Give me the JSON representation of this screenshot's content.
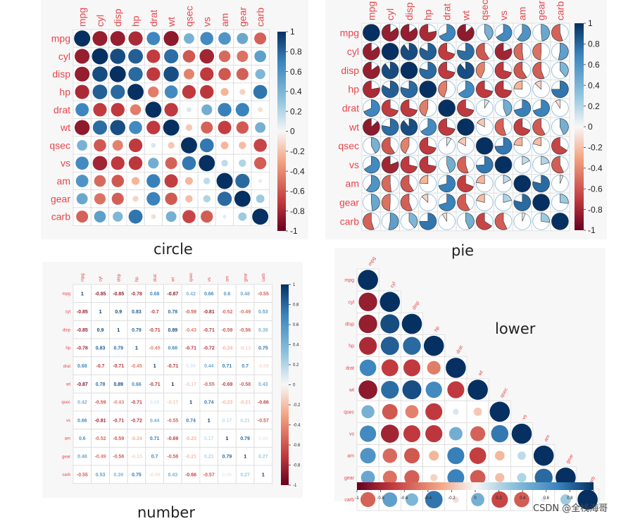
{
  "captions": {
    "circle": "circle",
    "pie": "pie",
    "number": "number",
    "lower": "lower"
  },
  "watermark": "CSDN @全栈海哥",
  "colors": {
    "negative": "#67001f",
    "positive": "#053061",
    "label": "#e8464b"
  },
  "chart_data": [
    {
      "type": "heatmap",
      "method": "circle",
      "variables": [
        "mpg",
        "cyl",
        "disp",
        "hp",
        "drat",
        "wt",
        "qsec",
        "vs",
        "am",
        "gear",
        "carb"
      ],
      "matrix": [
        [
          1,
          -0.85,
          -0.85,
          -0.78,
          0.68,
          -0.87,
          0.42,
          0.66,
          0.6,
          0.48,
          -0.55
        ],
        [
          -0.85,
          1,
          0.9,
          0.83,
          -0.7,
          0.78,
          -0.59,
          -0.81,
          -0.52,
          -0.49,
          0.53
        ],
        [
          -0.85,
          0.9,
          1,
          0.79,
          -0.71,
          0.89,
          -0.43,
          -0.71,
          -0.59,
          -0.56,
          0.39
        ],
        [
          -0.78,
          0.83,
          0.79,
          1,
          -0.45,
          0.66,
          -0.71,
          -0.72,
          -0.24,
          -0.13,
          0.75
        ],
        [
          0.68,
          -0.7,
          -0.71,
          -0.45,
          1,
          -0.71,
          0.09,
          0.44,
          0.71,
          0.7,
          -0.09
        ],
        [
          -0.87,
          0.78,
          0.89,
          0.66,
          -0.71,
          1,
          -0.17,
          -0.55,
          -0.69,
          -0.58,
          0.43
        ],
        [
          0.42,
          -0.59,
          -0.43,
          -0.71,
          0.09,
          -0.17,
          1,
          0.74,
          -0.23,
          -0.21,
          -0.66
        ],
        [
          0.66,
          -0.81,
          -0.71,
          -0.72,
          0.44,
          -0.55,
          0.74,
          1,
          0.17,
          0.21,
          -0.57
        ],
        [
          0.6,
          -0.52,
          -0.59,
          -0.24,
          0.71,
          -0.69,
          -0.23,
          0.17,
          1,
          0.79,
          0.06
        ],
        [
          0.48,
          -0.49,
          -0.56,
          -0.13,
          0.7,
          -0.58,
          -0.21,
          0.21,
          0.79,
          1,
          0.27
        ],
        [
          -0.55,
          0.53,
          0.39,
          0.75,
          -0.09,
          0.43,
          -0.66,
          -0.57,
          0.06,
          0.27,
          1
        ]
      ],
      "colorbar": {
        "ticks": [
          "1",
          "0.8",
          "0.6",
          "0.4",
          "0.2",
          "0",
          "-0.2",
          "-0.4",
          "-0.6",
          "-0.8",
          "-1"
        ],
        "range": [
          -1,
          1
        ],
        "orientation": "vertical"
      }
    },
    {
      "type": "heatmap",
      "method": "pie",
      "variables": [
        "mpg",
        "cyl",
        "disp",
        "hp",
        "drat",
        "wt",
        "qsec",
        "vs",
        "am",
        "gear",
        "carb"
      ],
      "colorbar": {
        "ticks": [
          "1",
          "0.8",
          "0.6",
          "0.4",
          "0.2",
          "0",
          "-0.2",
          "-0.4",
          "-0.6",
          "-0.8",
          "-1"
        ],
        "range": [
          -1,
          1
        ],
        "orientation": "vertical"
      }
    },
    {
      "type": "heatmap",
      "method": "number",
      "variables": [
        "mpg",
        "cyl",
        "disp",
        "hp",
        "drat",
        "wt",
        "qsec",
        "vs",
        "am",
        "gear",
        "carb"
      ],
      "colorbar": {
        "ticks": [
          "1",
          "0.8",
          "0.6",
          "0.4",
          "0.2",
          "0",
          "-0.2",
          "-0.4",
          "-0.6",
          "-0.8",
          "-1"
        ],
        "range": [
          -1,
          1
        ],
        "orientation": "vertical"
      }
    },
    {
      "type": "heatmap",
      "method": "circle",
      "shape": "lower",
      "variables": [
        "mpg",
        "cyl",
        "disp",
        "hp",
        "drat",
        "wt",
        "qsec",
        "vs",
        "am",
        "gear",
        "carb"
      ],
      "colorbar": {
        "ticks": [
          "-1",
          "-0.8",
          "-0.6",
          "-0.4",
          "-0.2",
          "0",
          "0.2",
          "0.4",
          "0.6",
          "0.8",
          "1"
        ],
        "range": [
          -1,
          1
        ],
        "orientation": "horizontal"
      }
    }
  ]
}
